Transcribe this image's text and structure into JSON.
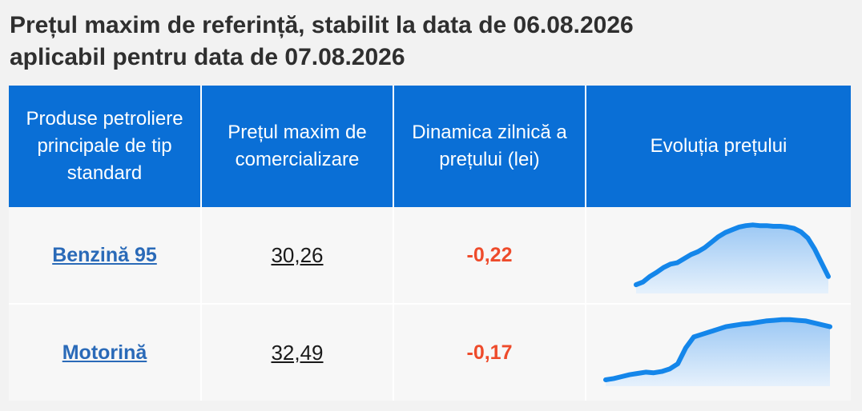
{
  "title": {
    "line1": "Prețul maxim de referință, stabilit la data de 06.08.2026",
    "line2": "aplicabil pentru data de 07.08.2026"
  },
  "table": {
    "headers": [
      "Produse petroliere principale de tip standard",
      "Prețul maxim de comercializare",
      "Dinamica zilnică a prețului (lei)",
      "Evoluția prețului"
    ],
    "rows": [
      {
        "product": "Benzină 95",
        "price": "30,26",
        "delta": "-0,22",
        "trend": [
          0.08,
          0.12,
          0.2,
          0.26,
          0.33,
          0.38,
          0.4,
          0.46,
          0.52,
          0.56,
          0.62,
          0.7,
          0.78,
          0.84,
          0.88,
          0.92,
          0.94,
          0.95,
          0.94,
          0.94,
          0.93,
          0.93,
          0.92,
          0.9,
          0.85,
          0.76,
          0.6,
          0.4,
          0.2
        ]
      },
      {
        "product": "Motorină",
        "price": "32,49",
        "delta": "-0,17",
        "trend": [
          0.05,
          0.07,
          0.1,
          0.13,
          0.15,
          0.17,
          0.16,
          0.18,
          0.22,
          0.3,
          0.55,
          0.72,
          0.76,
          0.8,
          0.84,
          0.88,
          0.9,
          0.92,
          0.93,
          0.95,
          0.97,
          0.98,
          0.99,
          0.99,
          0.98,
          0.97,
          0.94,
          0.91,
          0.88
        ]
      }
    ]
  },
  "colors": {
    "header_bg": "#0a6fd6",
    "link": "#2a6ab8",
    "delta_negative": "#ee4b2b",
    "spark_line": "#1486ea",
    "spark_fill_top": "#9cc8f4",
    "spark_fill_bottom": "#e6f1fc"
  }
}
